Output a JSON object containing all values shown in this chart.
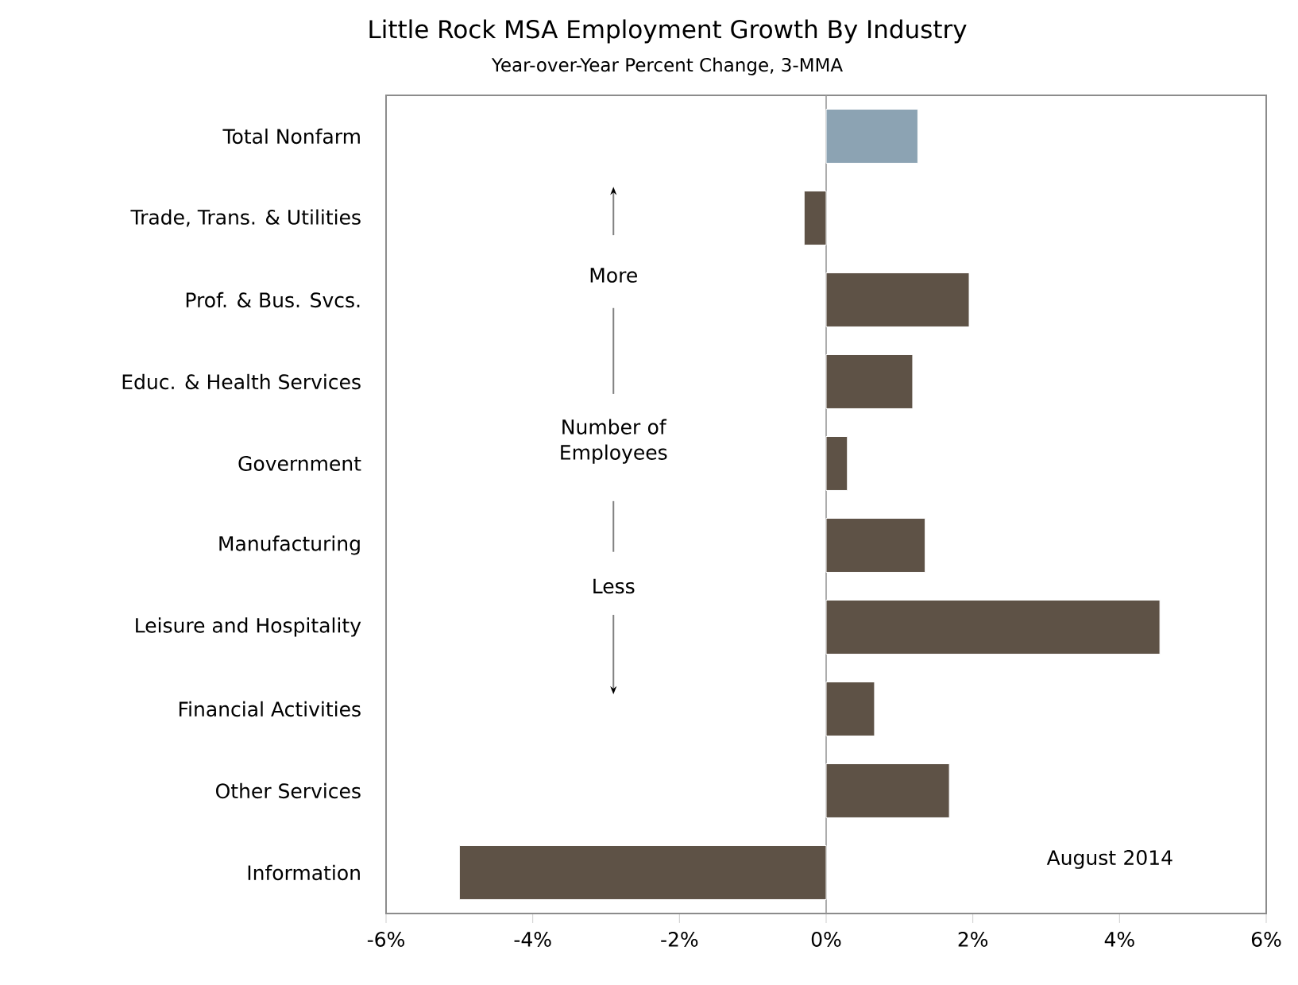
{
  "chart_data": {
    "type": "bar",
    "orientation": "horizontal",
    "title": "Little Rock MSA Employment Growth By Industry",
    "subtitle": "Year-over-Year Percent Change, 3-MMA",
    "categories": [
      "Total Nonfarm",
      "Trade, Trans. & Utilities",
      "Prof. & Bus. Svcs.",
      "Educ. & Health Services",
      "Government",
      "Manufacturing",
      "Leisure and Hospitality",
      "Financial Activities",
      "Other Services",
      "Information"
    ],
    "values": [
      1.25,
      -0.3,
      1.95,
      1.18,
      0.29,
      1.35,
      4.55,
      0.66,
      1.68,
      -5.0
    ],
    "colors": [
      "#8ca3b3",
      "#5e5246",
      "#5e5246",
      "#5e5246",
      "#5e5246",
      "#5e5246",
      "#5e5246",
      "#5e5246",
      "#5e5246",
      "#5e5246"
    ],
    "xlim": [
      -6,
      6
    ],
    "xticks": [
      {
        "value": -6,
        "label": "-6%"
      },
      {
        "value": -4,
        "label": "-4%"
      },
      {
        "value": -2,
        "label": "-2%"
      },
      {
        "value": 0,
        "label": "0%"
      },
      {
        "value": 2,
        "label": "2%"
      },
      {
        "value": 4,
        "label": "4%"
      },
      {
        "value": 6,
        "label": "6%"
      }
    ],
    "annotations": [
      "More",
      "Number of Employees",
      "Less",
      "August 2014"
    ],
    "ref_lines": [
      {
        "axis": "x",
        "value": 0,
        "color": "#999999"
      }
    ]
  }
}
